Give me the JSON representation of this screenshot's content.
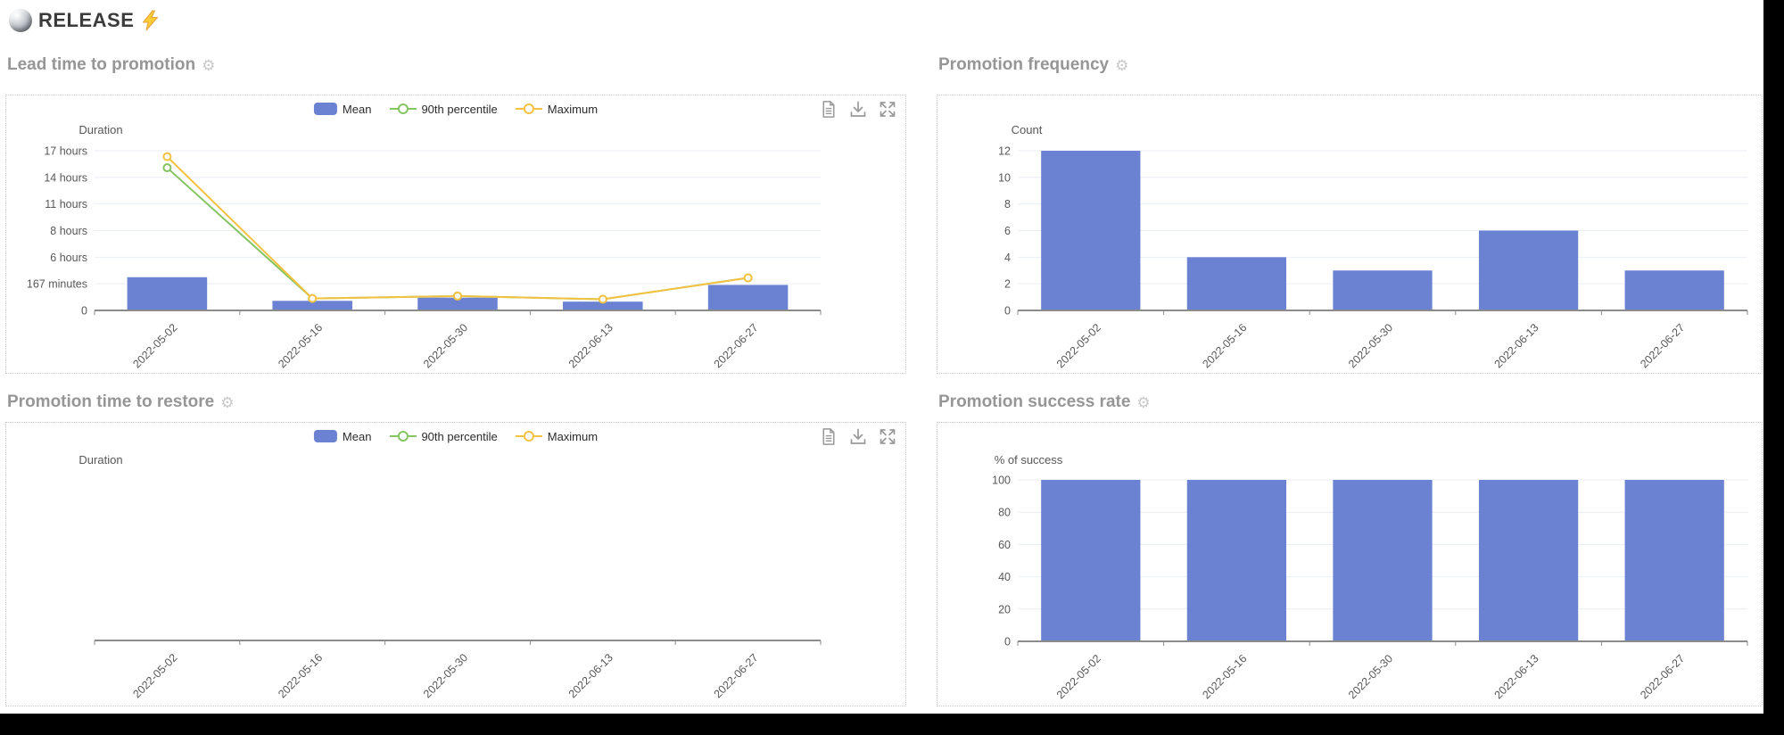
{
  "header": {
    "title": "RELEASE",
    "logo_icon": "sphere-logo",
    "decoration_icon": "lightning-bolt-icon"
  },
  "colors": {
    "bar": "#6b82d3",
    "green": "#85c561",
    "yellow": "#f4c242",
    "grid": "#e9eef6",
    "axis": "#8c8c8c",
    "tick_text": "#575757",
    "title_text": "#969696",
    "gear": "#c9c9c9",
    "icon": "#999999",
    "legend_text": "#2b2b2b",
    "panel_border": "#cbcbcb"
  },
  "panels": [
    {
      "title": "Lead time to promotion",
      "gear_icon": "gear-icon",
      "legend": [
        {
          "label": "Mean",
          "marker": "bar",
          "color_key": "bar"
        },
        {
          "label": "90th percentile",
          "marker": "line-circle",
          "color_key": "green"
        },
        {
          "label": "Maximum",
          "marker": "line-circle",
          "color_key": "yellow"
        }
      ],
      "toolbar": [
        "file-icon",
        "download-icon",
        "expand-icon"
      ]
    },
    {
      "title": "Promotion frequency",
      "gear_icon": "gear-icon"
    },
    {
      "title": "Promotion time to restore",
      "gear_icon": "gear-icon",
      "legend": [
        {
          "label": "Mean",
          "marker": "bar",
          "color_key": "bar"
        },
        {
          "label": "90th percentile",
          "marker": "line-circle",
          "color_key": "green"
        },
        {
          "label": "Maximum",
          "marker": "line-circle",
          "color_key": "yellow"
        }
      ],
      "toolbar": [
        "file-icon",
        "download-icon",
        "expand-icon"
      ]
    },
    {
      "title": "Promotion success rate",
      "gear_icon": "gear-icon"
    }
  ],
  "chart_data": [
    {
      "id": "lead_time_to_promotion",
      "type": "bar",
      "title": "Lead time to promotion",
      "ylabel": "Duration",
      "categories": [
        "2022-05-02",
        "2022-05-16",
        "2022-05-30",
        "2022-06-13",
        "2022-06-27"
      ],
      "y_ticks": [
        {
          "v": 0,
          "label": "0"
        },
        {
          "v": 167,
          "label": "167 minutes"
        },
        {
          "v": 360,
          "label": "6 hours"
        },
        {
          "v": 480,
          "label": "8 hours"
        },
        {
          "v": 660,
          "label": "11 hours"
        },
        {
          "v": 840,
          "label": "14 hours"
        },
        {
          "v": 1020,
          "label": "17 hours"
        }
      ],
      "unit": "minutes",
      "axis_note": "ticks rendered equidistant",
      "grid": true,
      "legend_position": "top-center",
      "series": [
        {
          "name": "Mean",
          "type": "bar",
          "values": [
            215,
            60,
            80,
            55,
            160
          ]
        },
        {
          "name": "90th percentile",
          "type": "line",
          "values": [
            905,
            75,
            90,
            70,
            210
          ]
        },
        {
          "name": "Maximum",
          "type": "line",
          "values": [
            980,
            75,
            90,
            70,
            210
          ]
        }
      ]
    },
    {
      "id": "promotion_frequency",
      "type": "bar",
      "title": "Promotion frequency",
      "ylabel": "Count",
      "categories": [
        "2022-05-02",
        "2022-05-16",
        "2022-05-30",
        "2022-06-13",
        "2022-06-27"
      ],
      "y_ticks": [
        0,
        2,
        4,
        6,
        8,
        10,
        12
      ],
      "grid": true,
      "series": [
        {
          "name": "Count",
          "type": "bar",
          "values": [
            12,
            4,
            3,
            6,
            3
          ]
        }
      ]
    },
    {
      "id": "promotion_time_to_restore",
      "type": "bar",
      "title": "Promotion time to restore",
      "ylabel": "Duration",
      "categories": [
        "2022-05-02",
        "2022-05-16",
        "2022-05-30",
        "2022-06-13",
        "2022-06-27"
      ],
      "y_ticks": [],
      "grid": false,
      "empty": true,
      "legend_position": "top-center",
      "series": []
    },
    {
      "id": "promotion_success_rate",
      "type": "bar",
      "title": "Promotion success rate",
      "ylabel": "% of success",
      "categories": [
        "2022-05-02",
        "2022-05-16",
        "2022-05-30",
        "2022-06-13",
        "2022-06-27"
      ],
      "y_ticks": [
        0,
        20,
        40,
        60,
        80,
        100
      ],
      "grid": true,
      "series": [
        {
          "name": "% of success",
          "type": "bar",
          "values": [
            100,
            100,
            100,
            100,
            100
          ]
        }
      ]
    }
  ]
}
